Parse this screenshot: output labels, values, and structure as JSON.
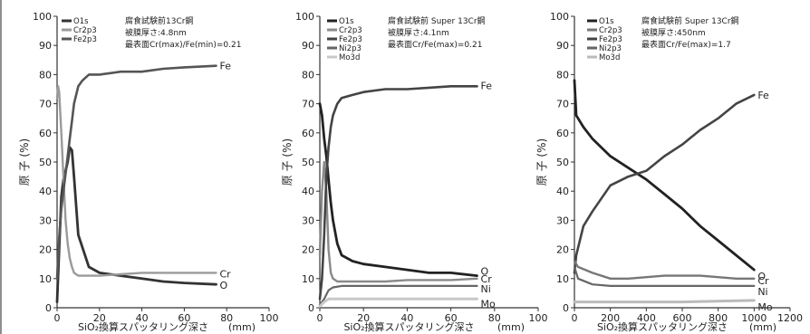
{
  "chart_data": [
    {
      "type": "line",
      "xlabel": "SiO₂換算スパッタリング深さ",
      "xunit": "(mm)",
      "ylabel": "原 子 (%)",
      "xlim": [
        0,
        100
      ],
      "ylim": [
        0,
        100
      ],
      "xticks": [
        "0",
        "20",
        "40",
        "60",
        "80",
        "100"
      ],
      "yticks": [
        "0",
        "10",
        "20",
        "30",
        "40",
        "50",
        "60",
        "70",
        "80",
        "90",
        "100"
      ],
      "annotations": [
        "腐食試験前13Cr鋼",
        "被膜厚さ:4.8nm",
        "最表面Cr(max)/Fe(min)=0.21"
      ],
      "legend": [
        "O1s",
        "Cr2p3",
        "Fe2p3"
      ],
      "series": [
        {
          "name": "O1s",
          "end_label": "O",
          "color": "#333333",
          "width": 2.8,
          "x": [
            0,
            1,
            2,
            3,
            4,
            5,
            6,
            7,
            8,
            10,
            15,
            20,
            30,
            40,
            50,
            60,
            75
          ],
          "y": [
            2,
            20,
            38,
            44,
            47,
            50,
            55,
            54,
            45,
            25,
            14,
            12,
            11,
            10,
            9,
            8.5,
            8
          ]
        },
        {
          "name": "Cr2p3",
          "end_label": "Cr",
          "color": "#9a9a9a",
          "width": 2.4,
          "x": [
            0,
            0.5,
            1,
            2,
            3,
            4,
            5,
            6,
            7,
            8,
            10,
            15,
            20,
            30,
            40,
            50,
            60,
            75
          ],
          "y": [
            72,
            76,
            74,
            60,
            45,
            30,
            22,
            17,
            14,
            12,
            11,
            11,
            11,
            11.5,
            12,
            12,
            12,
            12
          ]
        },
        {
          "name": "Fe2p3",
          "end_label": "Fe",
          "color": "#555555",
          "width": 2.6,
          "x": [
            0,
            1,
            2,
            3,
            4,
            5,
            6,
            7,
            8,
            10,
            12,
            15,
            20,
            30,
            40,
            50,
            60,
            75
          ],
          "y": [
            10,
            24,
            34,
            40,
            46,
            52,
            58,
            64,
            70,
            76,
            78,
            80,
            80,
            81,
            81,
            82,
            82.5,
            83
          ]
        }
      ]
    },
    {
      "type": "line",
      "xlabel": "SiO₂換算スパッタリング深さ",
      "xunit": "(mm)",
      "ylabel": "原 子 (%)",
      "xlim": [
        0,
        100
      ],
      "ylim": [
        0,
        100
      ],
      "xticks": [
        "0",
        "20",
        "40",
        "60",
        "80",
        "100"
      ],
      "yticks": [
        "0",
        "10",
        "20",
        "30",
        "40",
        "50",
        "60",
        "70",
        "80",
        "90",
        "100"
      ],
      "annotations": [
        "腐食試験前 Super 13Cr鋼",
        "被膜厚さ:4.1nm",
        "最表面Cr/Fe(max)=0.21"
      ],
      "legend": [
        "O1s",
        "Cr2p3",
        "Fe2p3",
        "Ni2p3",
        "Mo3d"
      ],
      "series": [
        {
          "name": "O1s",
          "end_label": "O",
          "color": "#222222",
          "width": 2.8,
          "x": [
            0,
            1,
            2,
            3,
            4,
            5,
            6,
            8,
            10,
            15,
            20,
            30,
            40,
            50,
            60,
            72
          ],
          "y": [
            70,
            66,
            58,
            52,
            44,
            36,
            30,
            22,
            18,
            16,
            15,
            14,
            13,
            12,
            12,
            11
          ]
        },
        {
          "name": "Cr2p3",
          "end_label": "Cr",
          "color": "#8a8a8a",
          "width": 2.4,
          "x": [
            0,
            1,
            2,
            3,
            4,
            5,
            6,
            8,
            10,
            20,
            30,
            40,
            50,
            60,
            72
          ],
          "y": [
            18,
            40,
            50,
            40,
            20,
            12,
            10,
            9,
            9,
            9,
            9,
            9.5,
            9.5,
            9.5,
            10
          ]
        },
        {
          "name": "Fe2p3",
          "end_label": "Fe",
          "color": "#444444",
          "width": 2.6,
          "x": [
            0,
            1,
            2,
            3,
            4,
            5,
            6,
            8,
            10,
            15,
            20,
            30,
            40,
            50,
            60,
            72
          ],
          "y": [
            3,
            10,
            25,
            45,
            55,
            62,
            66,
            70,
            72,
            73,
            74,
            75,
            75,
            75.5,
            76,
            76
          ]
        },
        {
          "name": "Ni2p3",
          "end_label": "Ni",
          "color": "#666666",
          "width": 2.2,
          "x": [
            0,
            2,
            4,
            6,
            10,
            20,
            40,
            60,
            72
          ],
          "y": [
            1,
            3,
            6,
            7,
            7.5,
            7.5,
            7.5,
            7.5,
            7.5
          ]
        },
        {
          "name": "Mo3d",
          "end_label": "Mo",
          "color": "#c8c8c8",
          "width": 3,
          "x": [
            0,
            2,
            4,
            6,
            10,
            20,
            40,
            60,
            72
          ],
          "y": [
            0.5,
            2,
            3,
            3,
            3,
            3,
            3,
            3,
            3
          ]
        }
      ]
    },
    {
      "type": "line",
      "xlabel": "SiO₂換算スパッタリング深さ",
      "xunit": "(mm)",
      "ylabel": "原 子 (%)",
      "xlim": [
        0,
        1200
      ],
      "ylim": [
        0,
        100
      ],
      "xticks": [
        "0",
        "200",
        "400",
        "600",
        "800",
        "1000",
        "1200"
      ],
      "yticks": [
        "0",
        "10",
        "20",
        "30",
        "40",
        "50",
        "60",
        "70",
        "80",
        "90",
        "100"
      ],
      "annotations": [
        "腐食試験前 Super 13Cr鋼",
        "被膜厚さ:450nm",
        "最表面Cr/Fe(max)=1.7"
      ],
      "legend": [
        "O1s",
        "Cr2p3",
        "Fe2p3",
        "Ni2p3",
        "Mo3d"
      ],
      "series": [
        {
          "name": "O1s",
          "end_label": "O",
          "color": "#222222",
          "width": 2.8,
          "x": [
            0,
            10,
            50,
            100,
            200,
            300,
            400,
            500,
            600,
            700,
            800,
            900,
            1000
          ],
          "y": [
            78,
            66,
            62,
            58,
            52,
            48,
            44,
            39,
            34,
            28,
            23,
            18,
            13
          ]
        },
        {
          "name": "Fe2p3",
          "end_label": "Fe",
          "color": "#444444",
          "width": 2.6,
          "x": [
            0,
            10,
            50,
            100,
            200,
            300,
            400,
            500,
            600,
            700,
            800,
            900,
            1000
          ],
          "y": [
            12,
            18,
            28,
            33,
            42,
            45,
            47,
            52,
            56,
            61,
            65,
            70,
            73
          ]
        },
        {
          "name": "Cr2p3",
          "end_label": "Cr",
          "color": "#777777",
          "width": 2.4,
          "x": [
            0,
            20,
            60,
            100,
            200,
            300,
            400,
            500,
            600,
            700,
            800,
            900,
            1000
          ],
          "y": [
            16,
            14,
            13,
            12,
            10,
            10,
            10.5,
            11,
            11,
            11,
            10.5,
            10,
            10
          ]
        },
        {
          "name": "Ni2p3",
          "end_label": "Ni",
          "color": "#666666",
          "width": 2.2,
          "x": [
            0,
            20,
            100,
            200,
            400,
            600,
            800,
            1000
          ],
          "y": [
            14,
            10,
            8,
            7.5,
            7.5,
            7.5,
            7.5,
            7.5
          ]
        },
        {
          "name": "Mo3d",
          "end_label": "Mo",
          "color": "#bbbbbb",
          "width": 3,
          "x": [
            0,
            20,
            100,
            300,
            600,
            1000
          ],
          "y": [
            2,
            2,
            2,
            2,
            2,
            2.5
          ]
        }
      ]
    }
  ]
}
